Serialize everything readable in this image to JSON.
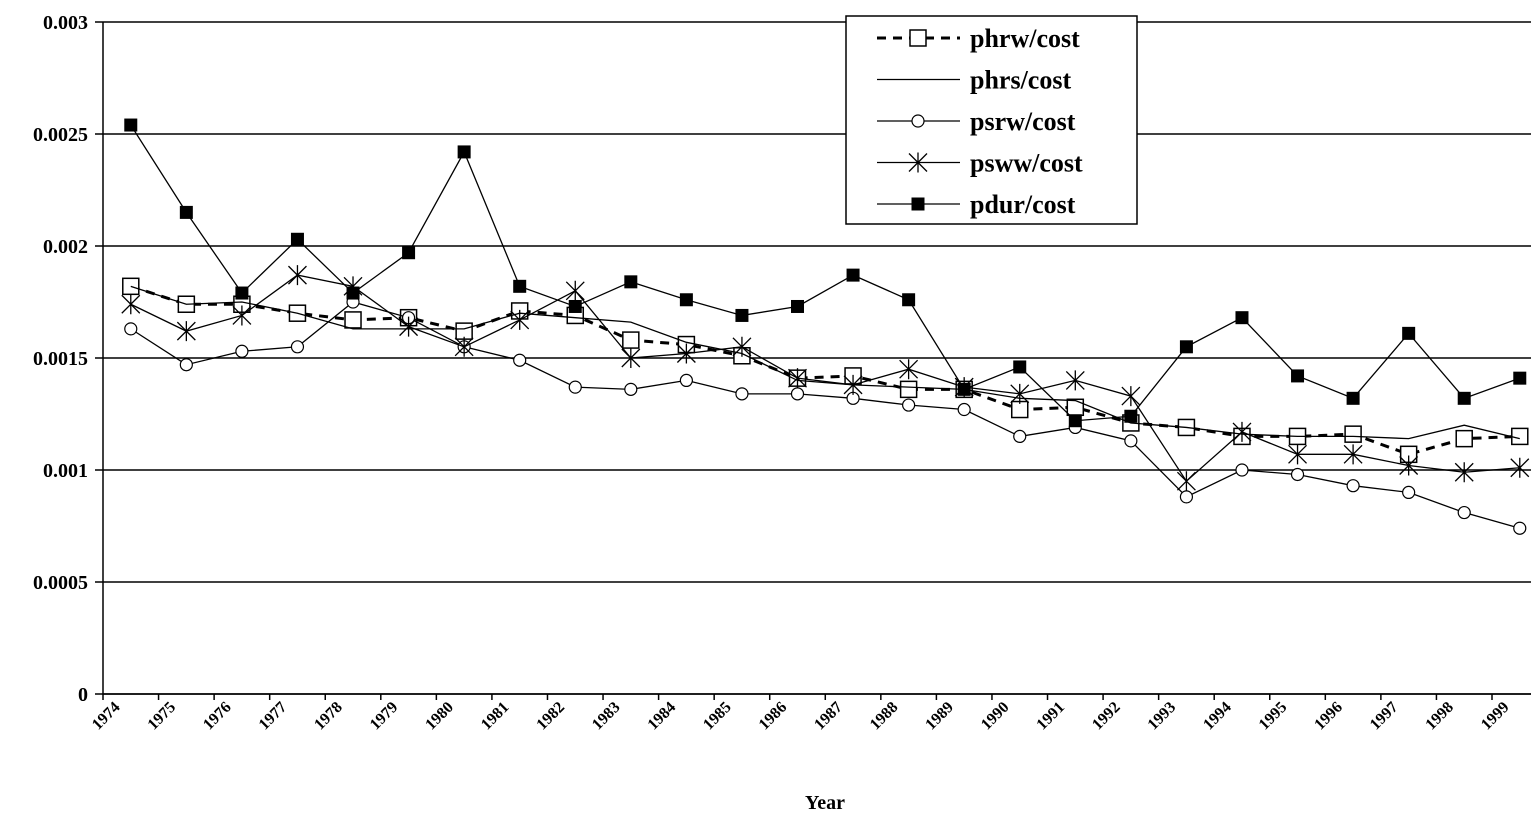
{
  "chart_data": {
    "type": "line",
    "x_label": "Year",
    "categories": [
      "1974",
      "1975",
      "1976",
      "1977",
      "1978",
      "1979",
      "1980",
      "1981",
      "1982",
      "1983",
      "1984",
      "1985",
      "1986",
      "1987",
      "1988",
      "1989",
      "1990",
      "1991",
      "1992",
      "1993",
      "1994",
      "1995",
      "1996",
      "1997",
      "1998",
      "1999"
    ],
    "ylim": [
      0,
      0.003
    ],
    "yticks": [
      0,
      0.0005,
      0.001,
      0.0015,
      0.002,
      0.0025,
      0.003
    ],
    "grid": true,
    "series": [
      {
        "name": "phrw/cost",
        "color": "#000000",
        "dashed": true,
        "marker": "square-open",
        "values": [
          0.00182,
          0.00174,
          0.00174,
          0.0017,
          0.00167,
          0.00168,
          0.00162,
          0.00171,
          0.00169,
          0.00158,
          0.00156,
          0.00151,
          0.00141,
          0.00142,
          0.00136,
          0.00136,
          0.00127,
          0.00128,
          0.00121,
          0.00119,
          0.00115,
          0.00115,
          0.00116,
          0.00107,
          0.00114,
          0.00115
        ]
      },
      {
        "name": "phrs/cost",
        "color": "#000000",
        "dashed": false,
        "marker": "none",
        "values": [
          0.00182,
          0.00174,
          0.00175,
          0.0017,
          0.00163,
          0.00163,
          0.00163,
          0.0017,
          0.00168,
          0.00166,
          0.00157,
          0.00152,
          0.0014,
          0.00138,
          0.00137,
          0.00136,
          0.00132,
          0.00131,
          0.00121,
          0.00119,
          0.00116,
          0.00115,
          0.00115,
          0.00114,
          0.0012,
          0.00114
        ]
      },
      {
        "name": "psrw/cost",
        "color": "#000000",
        "dashed": false,
        "marker": "circle-open",
        "values": [
          0.00163,
          0.00147,
          0.00153,
          0.00155,
          0.00175,
          0.00168,
          0.00155,
          0.00149,
          0.00137,
          0.00136,
          0.0014,
          0.00134,
          0.00134,
          0.00132,
          0.00129,
          0.00127,
          0.00115,
          0.00119,
          0.00113,
          0.00088,
          0.001,
          0.00098,
          0.00093,
          0.0009,
          0.00081,
          0.00074
        ]
      },
      {
        "name": "psww/cost",
        "color": "#000000",
        "dashed": false,
        "marker": "asterisk",
        "values": [
          0.00174,
          0.00162,
          0.00169,
          0.00187,
          0.00182,
          0.00164,
          0.00155,
          0.00167,
          0.0018,
          0.0015,
          0.00152,
          0.00155,
          0.00141,
          0.00138,
          0.00145,
          0.00137,
          0.00134,
          0.0014,
          0.00133,
          0.00095,
          0.00117,
          0.00107,
          0.00107,
          0.00102,
          0.00099,
          0.00101
        ]
      },
      {
        "name": "pdur/cost",
        "color": "#000000",
        "dashed": false,
        "marker": "square-filled",
        "values": [
          0.00254,
          0.00215,
          0.00179,
          0.00203,
          0.00179,
          0.00197,
          0.00242,
          0.00182,
          0.00173,
          0.00184,
          0.00176,
          0.00169,
          0.00173,
          0.00187,
          0.00176,
          0.00136,
          0.00146,
          0.00122,
          0.00124,
          0.00155,
          0.00168,
          0.00142,
          0.00132,
          0.00161,
          0.00132,
          0.00141
        ]
      }
    ]
  }
}
